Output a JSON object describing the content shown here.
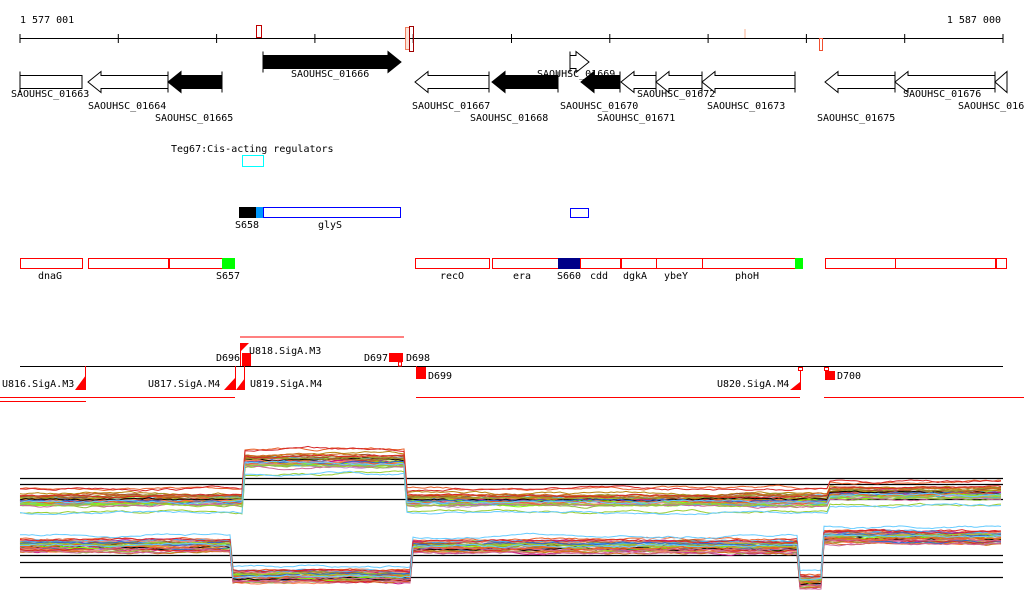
{
  "ruler": {
    "start_label": "1 577 001",
    "end_label": "1 587 000",
    "start": 1577001,
    "end": 1587000
  },
  "genes": [
    {
      "label": "SAOUHSC_01663",
      "strand": "none",
      "fill": "white"
    },
    {
      "label": "SAOUHSC_01664",
      "strand": "-",
      "fill": "white"
    },
    {
      "label": "SAOUHSC_01665",
      "strand": "-",
      "fill": "black"
    },
    {
      "label": "SAOUHSC_01666",
      "strand": "+",
      "fill": "black"
    },
    {
      "label": "SAOUHSC_01667",
      "strand": "-",
      "fill": "white"
    },
    {
      "label": "SAOUHSC_01668",
      "strand": "-",
      "fill": "black"
    },
    {
      "label": "SAOUHSC_01669",
      "strand": "+",
      "fill": "white"
    },
    {
      "label": "SAOUHSC_01670",
      "strand": "-",
      "fill": "black"
    },
    {
      "label": "SAOUHSC_01671",
      "strand": "-",
      "fill": "white"
    },
    {
      "label": "SAOUHSC_01672",
      "strand": "-",
      "fill": "white"
    },
    {
      "label": "SAOUHSC_01673",
      "strand": "-",
      "fill": "white"
    },
    {
      "label": "SAOUHSC_01675",
      "strand": "-",
      "fill": "white"
    },
    {
      "label": "SAOUHSC_01676",
      "strand": "-",
      "fill": "white"
    },
    {
      "label": "SAOUHSC_016",
      "strand": "-",
      "fill": "white"
    }
  ],
  "regulator_track": {
    "label": "Teg67:Cis-acting regulators",
    "color": "#00ffff"
  },
  "operon_track": {
    "labels": [
      "S658",
      "glyS"
    ],
    "colors": {
      "S658": "#000000",
      "utr": "#0099ff",
      "gene": "#0000ff"
    }
  },
  "annotation_track": {
    "labels": [
      "dnaG",
      "S657",
      "recO",
      "era",
      "S660",
      "cdd",
      "dgkA",
      "ybeY",
      "phoH"
    ],
    "colors": {
      "box": "#ff0000",
      "srna": "#00ff00",
      "S660": "#000088"
    }
  },
  "transcript_track": {
    "labels": [
      "U818.SigA.M3",
      "D696",
      "D697",
      "D698",
      "U816.SigA.M3",
      "U817.SigA.M4",
      "U819.SigA.M4",
      "D699",
      "U820.SigA.M4",
      "D700"
    ],
    "color": "#ff0000"
  },
  "expression_palette": [
    "#e8612c",
    "#d62728",
    "#9acd32",
    "#66ccff",
    "#b8860b",
    "#c71585",
    "#bb88cc",
    "#ff7f50",
    "#8fbc3f",
    "#000000",
    "#a0522d",
    "#44aaee",
    "#e9967a",
    "#7fff00",
    "#999933",
    "#d2691e",
    "#cc6699",
    "#3366cc"
  ]
}
